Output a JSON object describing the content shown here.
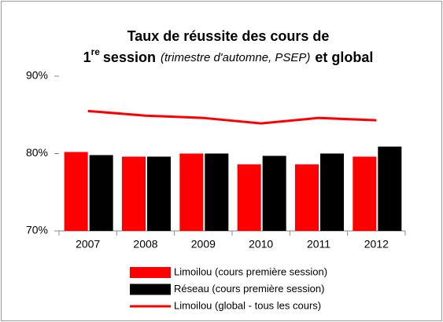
{
  "chart_data": {
    "type": "bar_line",
    "title": {
      "line1": "Taux de réussite des cours de",
      "line2": [
        "1",
        "re",
        "session",
        "(trimestre d'automne, PSEP)",
        "et global"
      ]
    },
    "categories": [
      "2007",
      "2008",
      "2009",
      "2010",
      "2011",
      "2012"
    ],
    "series": [
      {
        "name": "Limoilou (cours première session)",
        "color": "#ff0000",
        "kind": "bar",
        "values": [
          80.2,
          79.6,
          80.0,
          78.6,
          78.6,
          79.6
        ]
      },
      {
        "name": "Réseau (cours première session)",
        "color": "#000000",
        "kind": "bar",
        "values": [
          79.8,
          79.6,
          80.0,
          79.7,
          80.0,
          80.9
        ]
      },
      {
        "name": "Limoilou (global - tous les cours)",
        "color": "#ff0000",
        "kind": "line",
        "values": [
          85.5,
          84.9,
          84.6,
          83.9,
          84.6,
          84.3
        ]
      }
    ],
    "ylim": [
      70,
      90
    ],
    "yticks": [
      {
        "value": 70,
        "label": "70%"
      },
      {
        "value": 80,
        "label": "80%"
      },
      {
        "value": 90,
        "label": "90%"
      }
    ],
    "grid": false
  }
}
